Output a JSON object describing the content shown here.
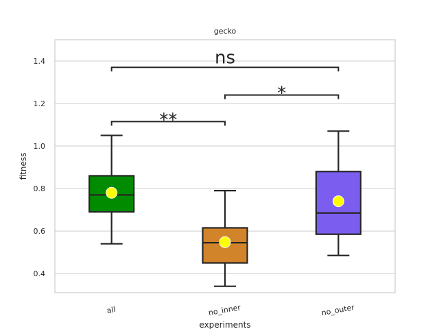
{
  "chart_data": {
    "type": "box",
    "title": "gecko",
    "xlabel": "experiments",
    "ylabel": "fitness",
    "ylim": [
      0.31,
      1.5
    ],
    "yticks": [
      0.4,
      0.6,
      0.8,
      1.0,
      1.2,
      1.4
    ],
    "grid": true,
    "categories": [
      "all",
      "no_inner",
      "no_outer"
    ],
    "boxes": [
      {
        "category": "all",
        "whislo": 0.54,
        "q1": 0.69,
        "med": 0.77,
        "q3": 0.86,
        "whishi": 1.05,
        "mean": 0.78,
        "color": "#008b00"
      },
      {
        "category": "no_inner",
        "whislo": 0.34,
        "q1": 0.45,
        "med": 0.545,
        "q3": 0.615,
        "whishi": 0.79,
        "mean": 0.548,
        "color": "#d2842a"
      },
      {
        "category": "no_outer",
        "whislo": 0.485,
        "q1": 0.585,
        "med": 0.685,
        "q3": 0.88,
        "whishi": 1.07,
        "mean": 0.74,
        "color": "#7b5df0"
      }
    ],
    "mean_marker_color": "#ffff00",
    "annotations": [
      {
        "from": "all",
        "to": "no_inner",
        "y": 1.115,
        "label": "**"
      },
      {
        "from": "no_inner",
        "to": "no_outer",
        "y": 1.24,
        "label": "*"
      },
      {
        "from": "all",
        "to": "no_outer",
        "y": 1.37,
        "label": "ns"
      }
    ]
  }
}
